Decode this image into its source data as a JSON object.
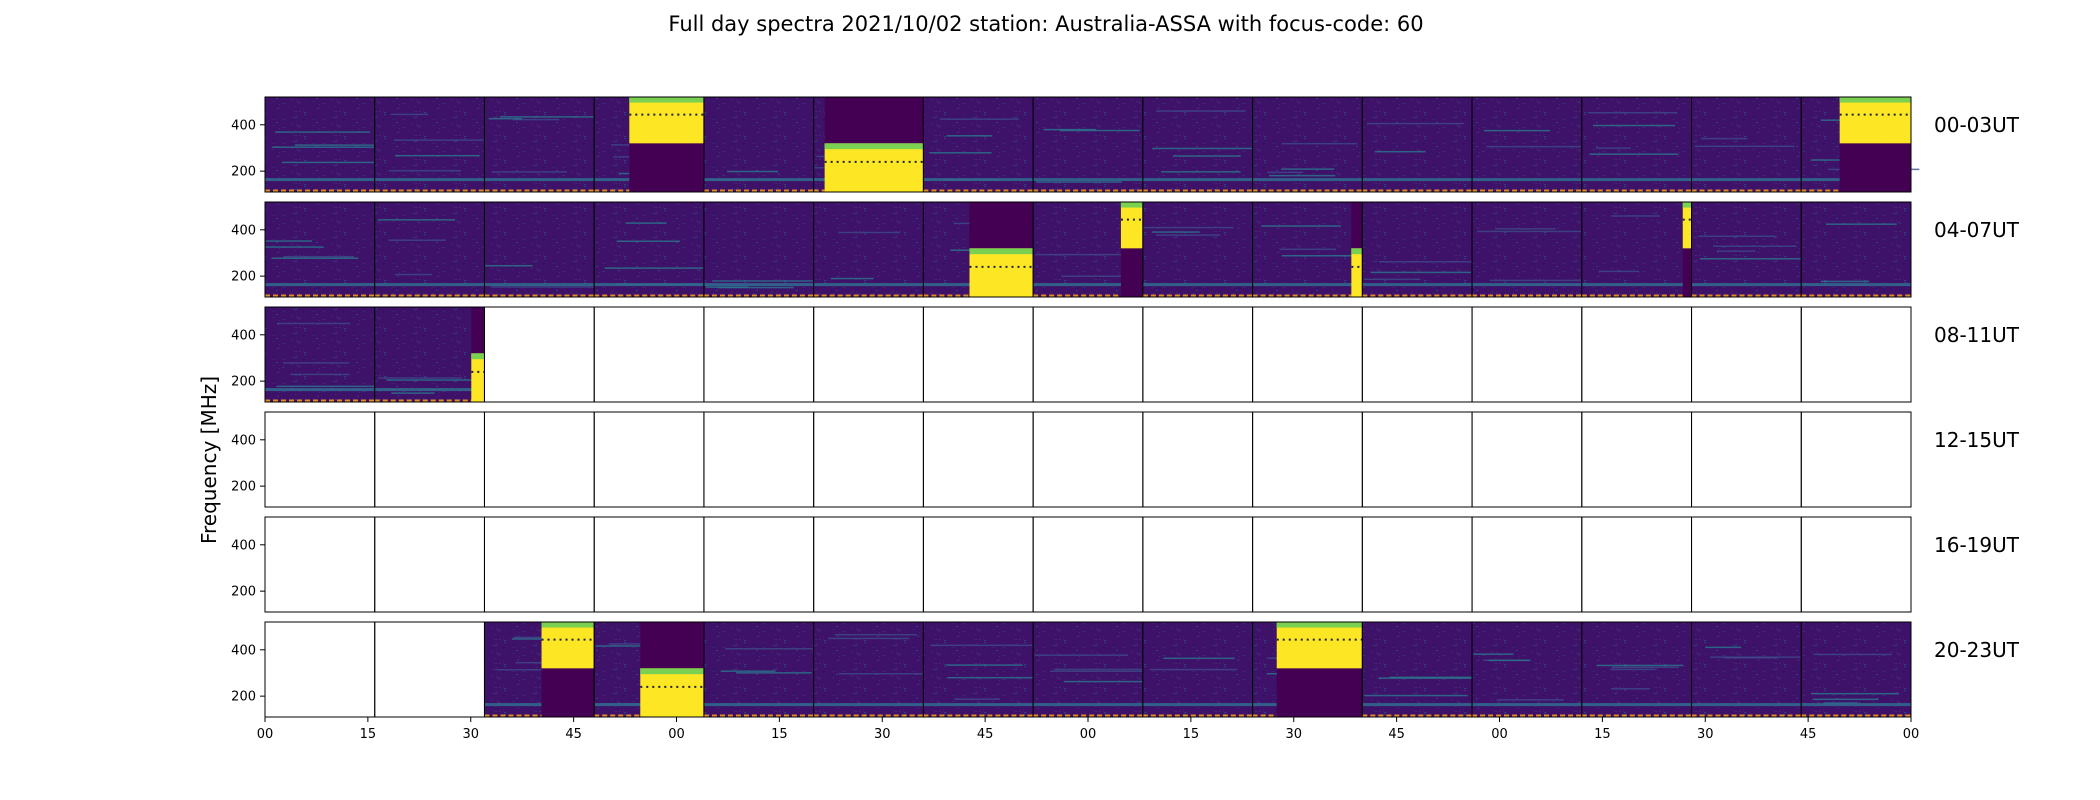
{
  "chart_data": {
    "type": "heatmap",
    "title": "Full day spectra 2021/10/02 station: Australia-ASSA with focus-code: 60",
    "ylabel": "Frequency [MHz]",
    "xlabel": "",
    "colormap": "viridis",
    "y_ticks": [
      "400",
      "200"
    ],
    "y_tick_values": [
      400,
      200
    ],
    "ylim": [
      110,
      520
    ],
    "x_ticks": [
      "00",
      "15",
      "30",
      "45",
      "00",
      "15",
      "30",
      "45",
      "00",
      "15",
      "30",
      "45",
      "00",
      "15",
      "30",
      "45",
      "00"
    ],
    "rows": [
      {
        "label": "00-03UT",
        "panels": [
          {
            "data": true
          },
          {
            "data": true
          },
          {
            "data": true
          },
          {
            "data": true,
            "burst": [
              {
                "from": 0.32,
                "to": 1.0,
                "fmin": 320,
                "fmax": 520
              }
            ]
          },
          {
            "data": true
          },
          {
            "data": true,
            "burst": [
              {
                "from": 0.1,
                "to": 1.0,
                "fmin": 110,
                "fmax": 320
              }
            ]
          },
          {
            "data": true
          },
          {
            "data": true
          },
          {
            "data": true
          },
          {
            "data": true
          },
          {
            "data": true
          },
          {
            "data": true
          },
          {
            "data": true
          },
          {
            "data": true
          },
          {
            "data": true,
            "burst": [
              {
                "from": 0.35,
                "to": 1.0,
                "fmin": 320,
                "fmax": 520
              }
            ]
          }
        ]
      },
      {
        "label": "04-07UT",
        "panels": [
          {
            "data": true
          },
          {
            "data": true
          },
          {
            "data": true
          },
          {
            "data": true
          },
          {
            "data": true
          },
          {
            "data": true
          },
          {
            "data": true,
            "burst": [
              {
                "from": 0.42,
                "to": 1.0,
                "fmin": 110,
                "fmax": 320
              }
            ]
          },
          {
            "data": true,
            "burst": [
              {
                "from": 0.8,
                "to": 1.0,
                "fmin": 320,
                "fmax": 520
              }
            ]
          },
          {
            "data": true
          },
          {
            "data": true,
            "burst": [
              {
                "from": 0.9,
                "to": 1.0,
                "fmin": 110,
                "fmax": 320
              }
            ]
          },
          {
            "data": true
          },
          {
            "data": true
          },
          {
            "data": true,
            "burst": [
              {
                "from": 0.92,
                "to": 1.0,
                "fmin": 320,
                "fmax": 520
              }
            ]
          },
          {
            "data": true
          },
          {
            "data": true
          }
        ]
      },
      {
        "label": "08-11UT",
        "panels": [
          {
            "data": true
          },
          {
            "data": true,
            "burst": [
              {
                "from": 0.88,
                "to": 1.0,
                "fmin": 110,
                "fmax": 320
              }
            ]
          },
          {
            "data": false
          },
          {
            "data": false
          },
          {
            "data": false
          },
          {
            "data": false
          },
          {
            "data": false
          },
          {
            "data": false
          },
          {
            "data": false
          },
          {
            "data": false
          },
          {
            "data": false
          },
          {
            "data": false
          },
          {
            "data": false
          },
          {
            "data": false
          },
          {
            "data": false
          }
        ]
      },
      {
        "label": "12-15UT",
        "panels": [
          {
            "data": false
          },
          {
            "data": false
          },
          {
            "data": false
          },
          {
            "data": false
          },
          {
            "data": false
          },
          {
            "data": false
          },
          {
            "data": false
          },
          {
            "data": false
          },
          {
            "data": false
          },
          {
            "data": false
          },
          {
            "data": false
          },
          {
            "data": false
          },
          {
            "data": false
          },
          {
            "data": false
          },
          {
            "data": false
          }
        ]
      },
      {
        "label": "16-19UT",
        "panels": [
          {
            "data": false
          },
          {
            "data": false
          },
          {
            "data": false
          },
          {
            "data": false
          },
          {
            "data": false
          },
          {
            "data": false
          },
          {
            "data": false
          },
          {
            "data": false
          },
          {
            "data": false
          },
          {
            "data": false
          },
          {
            "data": false
          },
          {
            "data": false
          },
          {
            "data": false
          },
          {
            "data": false
          },
          {
            "data": false
          }
        ]
      },
      {
        "label": "20-23UT",
        "panels": [
          {
            "data": false
          },
          {
            "data": false
          },
          {
            "data": true,
            "burst": [
              {
                "from": 0.52,
                "to": 1.0,
                "fmin": 320,
                "fmax": 520
              }
            ]
          },
          {
            "data": true,
            "burst": [
              {
                "from": 0.42,
                "to": 1.0,
                "fmin": 110,
                "fmax": 320
              }
            ]
          },
          {
            "data": true
          },
          {
            "data": true
          },
          {
            "data": true
          },
          {
            "data": true
          },
          {
            "data": true
          },
          {
            "data": true,
            "burst": [
              {
                "from": 0.22,
                "to": 1.0,
                "fmin": 320,
                "fmax": 520
              }
            ]
          },
          {
            "data": true
          },
          {
            "data": true
          },
          {
            "data": true
          },
          {
            "data": true
          },
          {
            "data": true
          }
        ]
      }
    ]
  }
}
